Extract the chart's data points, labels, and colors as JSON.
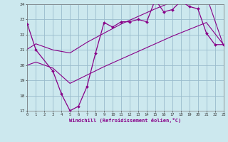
{
  "xlabel": "Windchill (Refroidissement éolien,°C)",
  "bg_color": "#cce8ee",
  "grid_color": "#99bbcc",
  "line_color": "#880088",
  "xlim": [
    0,
    23
  ],
  "ylim": [
    17,
    24
  ],
  "yticks": [
    17,
    18,
    19,
    20,
    21,
    22,
    23,
    24
  ],
  "xticks": [
    0,
    1,
    2,
    3,
    4,
    5,
    6,
    7,
    8,
    9,
    10,
    11,
    12,
    13,
    14,
    15,
    16,
    17,
    18,
    19,
    20,
    21,
    22,
    23
  ],
  "main_x": [
    0,
    1,
    3,
    4,
    5,
    6,
    7,
    8,
    9,
    10,
    11,
    12,
    13,
    14,
    15,
    16,
    17,
    18,
    19,
    20,
    21,
    22,
    23
  ],
  "main_y": [
    22.7,
    21.0,
    19.6,
    18.1,
    17.0,
    17.3,
    18.6,
    20.8,
    22.8,
    22.5,
    22.85,
    22.85,
    23.0,
    22.85,
    24.3,
    23.5,
    23.65,
    24.2,
    23.85,
    23.7,
    22.1,
    21.35,
    21.35
  ],
  "upper_x": [
    0,
    1,
    3,
    5,
    7,
    9,
    11,
    13,
    15,
    17,
    19,
    21,
    23
  ],
  "upper_y": [
    21.05,
    21.4,
    21.0,
    20.8,
    21.5,
    22.1,
    22.7,
    23.2,
    23.7,
    24.15,
    24.5,
    24.55,
    21.3
  ],
  "lower_x": [
    0,
    1,
    3,
    5,
    7,
    9,
    11,
    13,
    15,
    17,
    19,
    21,
    23
  ],
  "lower_y": [
    20.0,
    20.2,
    19.8,
    18.8,
    19.35,
    19.9,
    20.4,
    20.9,
    21.4,
    21.9,
    22.35,
    22.8,
    21.35
  ]
}
